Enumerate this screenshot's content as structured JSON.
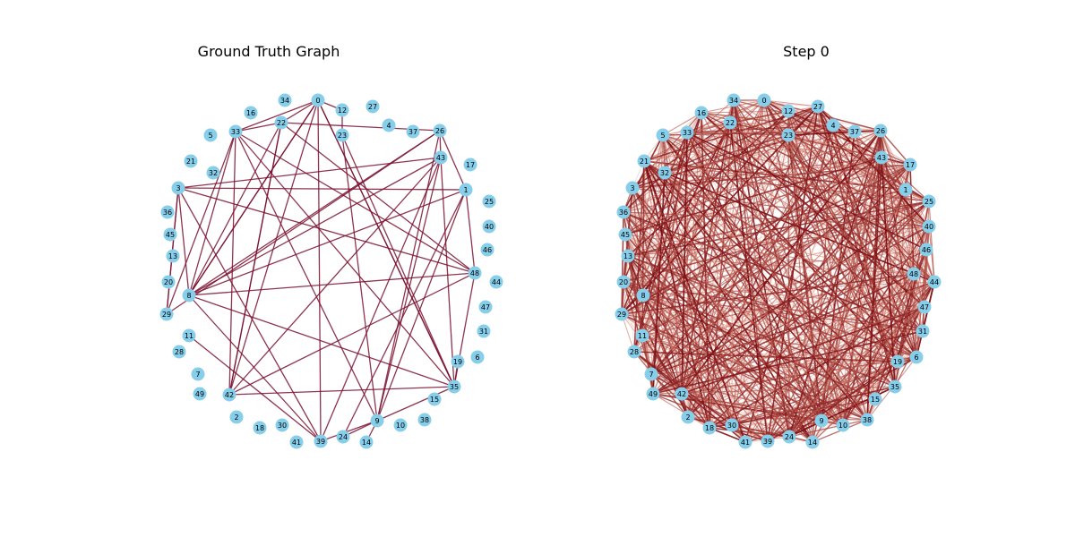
{
  "panels": [
    {
      "title": "Ground Truth Graph",
      "nodes": [
        "0",
        "1",
        "2",
        "3",
        "4",
        "5",
        "6",
        "7",
        "8",
        "9",
        "10",
        "11",
        "12",
        "13",
        "14",
        "15",
        "16",
        "17",
        "18",
        "19",
        "20",
        "21",
        "22",
        "23",
        "24",
        "25",
        "26",
        "27",
        "28",
        "29",
        "30",
        "31",
        "32",
        "33",
        "34",
        "35",
        "36",
        "37",
        "38",
        "39",
        "40",
        "41",
        "42",
        "43",
        "44",
        "45",
        "46",
        "47",
        "48",
        "49"
      ],
      "edges": [
        [
          "0",
          "12"
        ],
        [
          "0",
          "8"
        ],
        [
          "0",
          "42"
        ],
        [
          "0",
          "39"
        ],
        [
          "0",
          "35"
        ],
        [
          "12",
          "23"
        ],
        [
          "22",
          "0"
        ],
        [
          "22",
          "26"
        ],
        [
          "22",
          "8"
        ],
        [
          "22",
          "42"
        ],
        [
          "22",
          "48"
        ],
        [
          "33",
          "22"
        ],
        [
          "33",
          "0"
        ],
        [
          "33",
          "8"
        ],
        [
          "33",
          "29"
        ],
        [
          "33",
          "35"
        ],
        [
          "33",
          "9"
        ],
        [
          "26",
          "43"
        ],
        [
          "26",
          "8"
        ],
        [
          "26",
          "29"
        ],
        [
          "26",
          "1"
        ],
        [
          "26",
          "9"
        ],
        [
          "43",
          "8"
        ],
        [
          "43",
          "42"
        ],
        [
          "43",
          "9"
        ],
        [
          "43",
          "39"
        ],
        [
          "43",
          "35"
        ],
        [
          "3",
          "1"
        ],
        [
          "3",
          "8"
        ],
        [
          "3",
          "29"
        ],
        [
          "3",
          "48"
        ],
        [
          "3",
          "39"
        ],
        [
          "3",
          "43"
        ],
        [
          "1",
          "8"
        ],
        [
          "1",
          "9"
        ],
        [
          "1",
          "24"
        ],
        [
          "1",
          "48"
        ],
        [
          "48",
          "42"
        ],
        [
          "48",
          "35"
        ],
        [
          "48",
          "8"
        ],
        [
          "48",
          "33"
        ],
        [
          "8",
          "39"
        ],
        [
          "8",
          "35"
        ],
        [
          "8",
          "0"
        ],
        [
          "29",
          "3"
        ],
        [
          "11",
          "39"
        ],
        [
          "42",
          "35"
        ],
        [
          "42",
          "22"
        ],
        [
          "42",
          "33"
        ],
        [
          "9",
          "35"
        ],
        [
          "9",
          "39"
        ],
        [
          "9",
          "14"
        ],
        [
          "9",
          "24"
        ],
        [
          "35",
          "19"
        ],
        [
          "35",
          "0"
        ],
        [
          "23",
          "35"
        ],
        [
          "23",
          "9"
        ]
      ]
    },
    {
      "title": "Step 0",
      "nodes": [
        "0",
        "1",
        "2",
        "3",
        "4",
        "5",
        "6",
        "7",
        "8",
        "9",
        "10",
        "11",
        "12",
        "13",
        "14",
        "15",
        "16",
        "17",
        "18",
        "19",
        "20",
        "21",
        "22",
        "23",
        "24",
        "25",
        "26",
        "27",
        "28",
        "29",
        "30",
        "31",
        "32",
        "33",
        "34",
        "35",
        "36",
        "37",
        "38",
        "39",
        "40",
        "41",
        "42",
        "43",
        "44",
        "45",
        "46",
        "47",
        "48",
        "49"
      ]
    }
  ],
  "colors": {
    "node": "#87ceeb",
    "gt_edge": "#7a1030",
    "dense_edge_dark": "#7a0a10",
    "dense_edge_light": "#f4a38a"
  }
}
